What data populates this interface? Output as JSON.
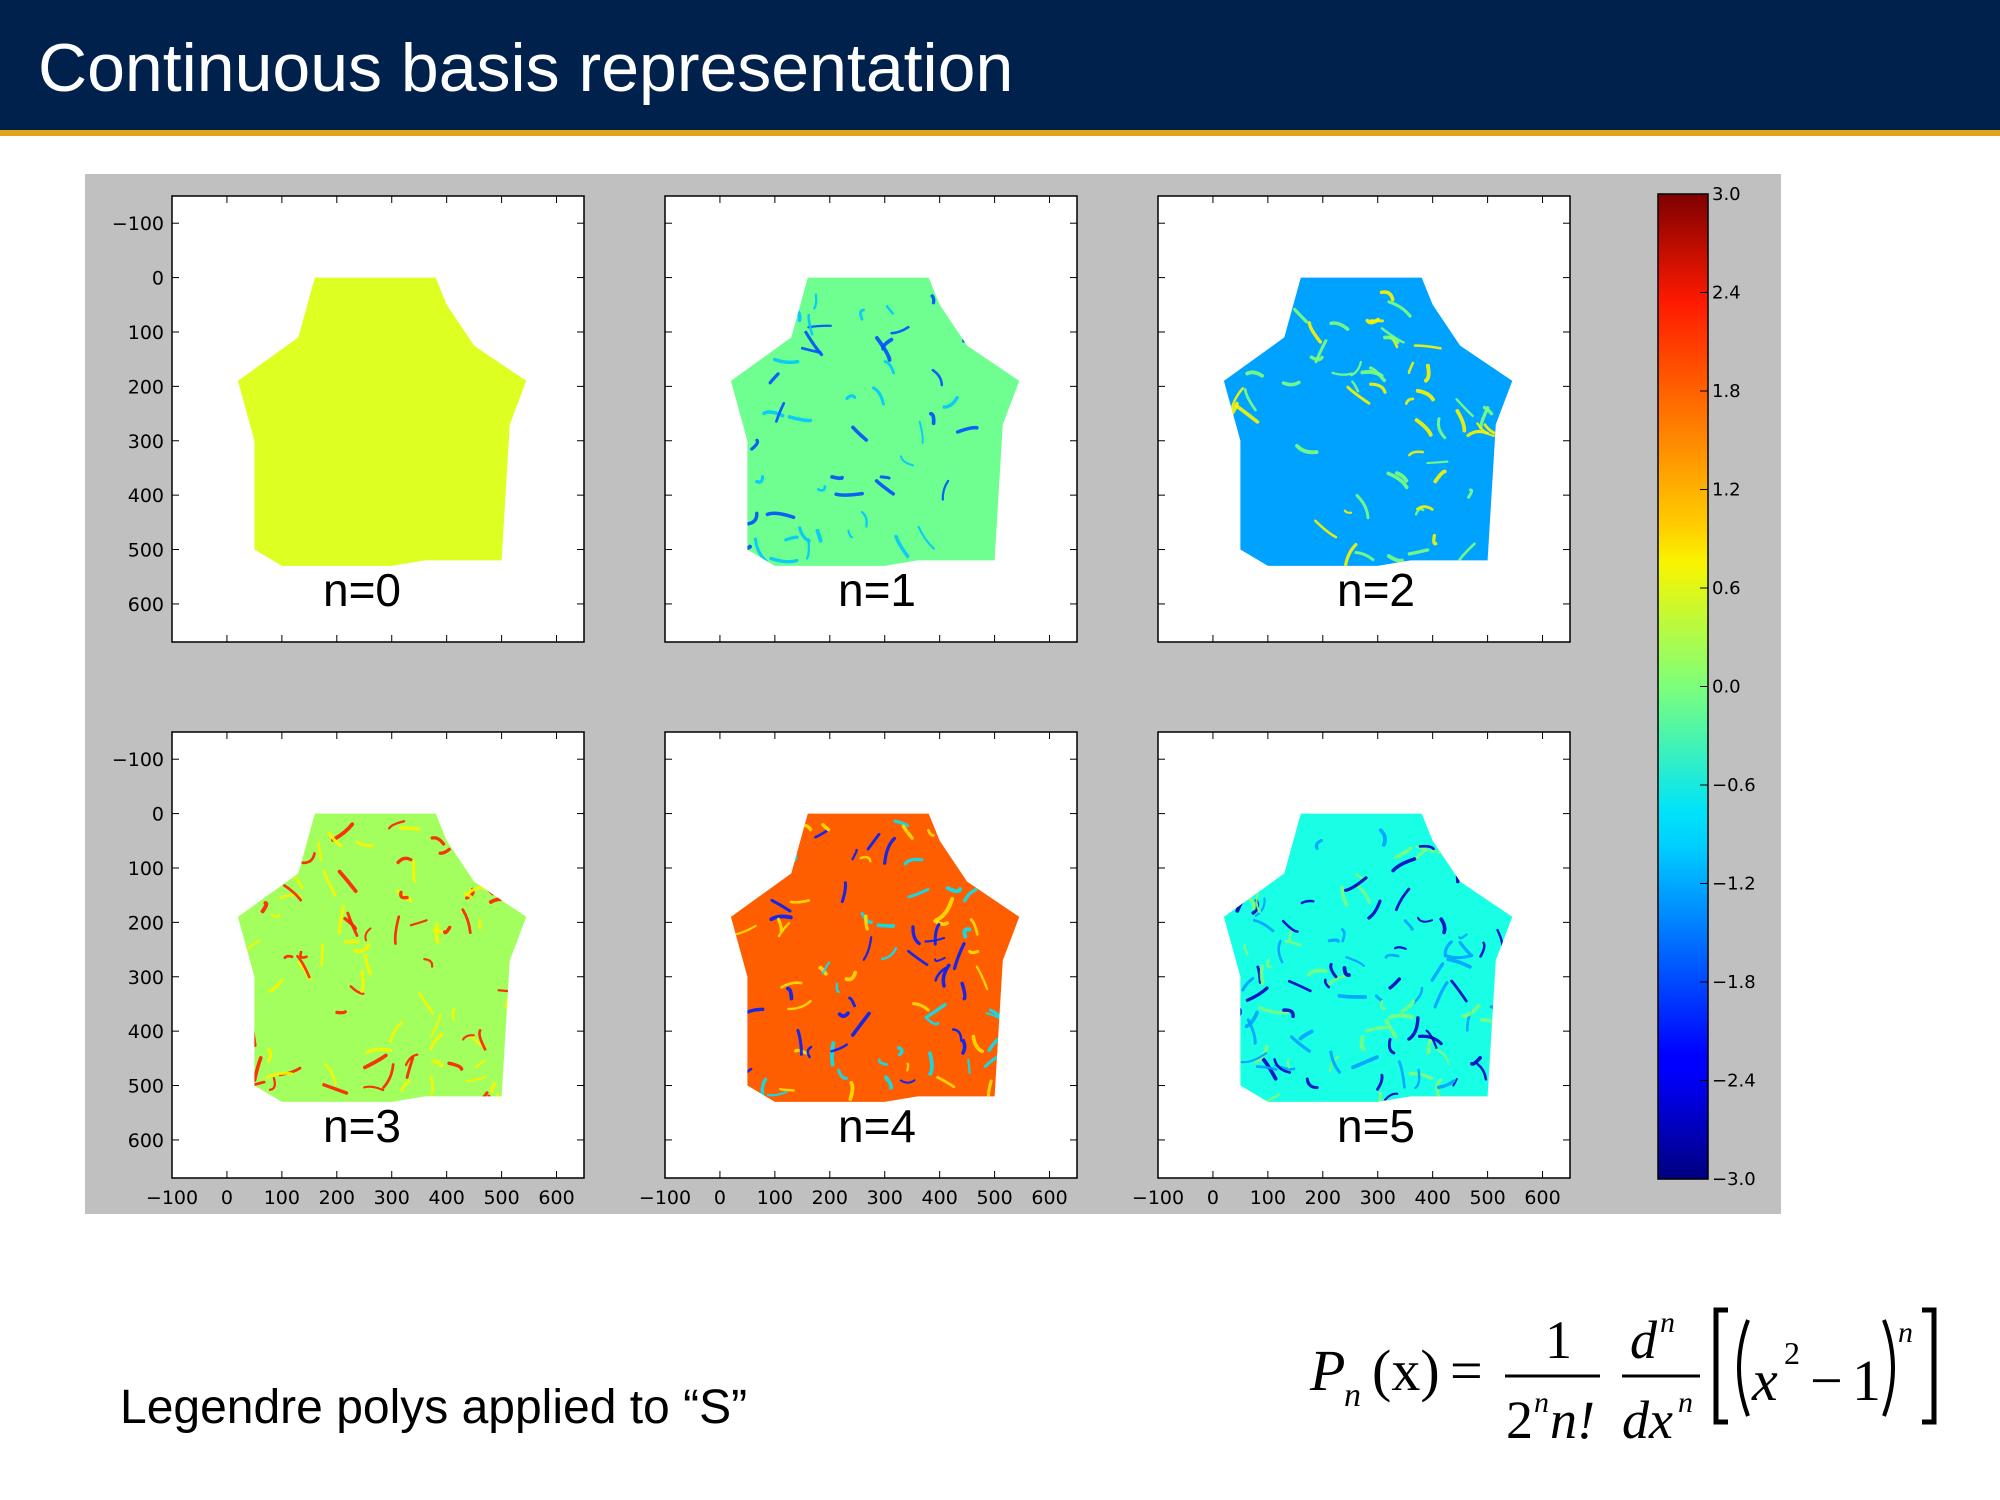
{
  "slide": {
    "title": "Continuous basis representation",
    "caption": "Legendre polys applied to “S”"
  },
  "formula": {
    "lhs_symbol": "P",
    "lhs_subscript": "n",
    "lhs_arg": "(x)",
    "equals": "=",
    "frac1_num": "1",
    "frac1_den_base": "2",
    "frac1_den_exp": "n",
    "frac1_den_tail": "n!",
    "frac2_num_base": "d",
    "frac2_num_exp": "n",
    "frac2_den_base": "dx",
    "frac2_den_exp": "n",
    "bracket_inner_var": "x",
    "bracket_inner_exp": "2",
    "bracket_inner_minus": "−",
    "bracket_inner_const": "1",
    "bracket_outer_exp": "n"
  },
  "colors": {
    "header_bg": "#00214b",
    "header_rule": "#e0a51e",
    "figure_bg": "#c0c0c0"
  },
  "chart_data": {
    "type": "heatmap",
    "colormap": "jet",
    "layout": "2 rows x 3 columns",
    "x_axis": {
      "range": [
        -100,
        650
      ],
      "ticks": [
        -100,
        0,
        100,
        200,
        300,
        400,
        500,
        600
      ],
      "tick_labels": [
        "−100",
        "0",
        "100",
        "200",
        "300",
        "400",
        "500",
        "600"
      ]
    },
    "y_axis": {
      "range": [
        -150,
        670
      ],
      "inverted": true,
      "ticks": [
        -100,
        0,
        100,
        200,
        300,
        400,
        500,
        600
      ],
      "tick_labels": [
        "−100",
        "0",
        "100",
        "200",
        "300",
        "400",
        "500",
        "600"
      ]
    },
    "colorbar": {
      "range": [
        -3.0,
        3.0
      ],
      "ticks": [
        3.0,
        2.4,
        1.8,
        1.2,
        0.6,
        0.0,
        -0.6,
        -1.2,
        -1.8,
        -2.4,
        -3.0
      ],
      "tick_labels": [
        "3.0",
        "2.4",
        "1.8",
        "1.2",
        "0.6",
        "0.0",
        "−0.6",
        "−1.2",
        "−1.8",
        "−2.4",
        "−3.0"
      ]
    },
    "shape_outline": [
      [
        160,
        0
      ],
      [
        380,
        0
      ],
      [
        400,
        50
      ],
      [
        450,
        125
      ],
      [
        545,
        190
      ],
      [
        515,
        270
      ],
      [
        500,
        520
      ],
      [
        360,
        520
      ],
      [
        300,
        530
      ],
      [
        100,
        530
      ],
      [
        50,
        500
      ],
      [
        50,
        300
      ],
      [
        20,
        190
      ],
      [
        130,
        110
      ]
    ],
    "panels": [
      {
        "label": "n=0",
        "base_value": 0.55,
        "features": "none"
      },
      {
        "label": "n=1",
        "base_value": -0.1,
        "features": "sparse blue streaks"
      },
      {
        "label": "n=2",
        "base_value": -1.3,
        "features": "green/yellow streaks"
      },
      {
        "label": "n=3",
        "base_value": 0.2,
        "features": "orange/red streaks"
      },
      {
        "label": "n=4",
        "base_value": 1.7,
        "features": "blue/cyan streaks"
      },
      {
        "label": "n=5",
        "base_value": -0.6,
        "features": "dense dark-blue streaks"
      }
    ]
  }
}
